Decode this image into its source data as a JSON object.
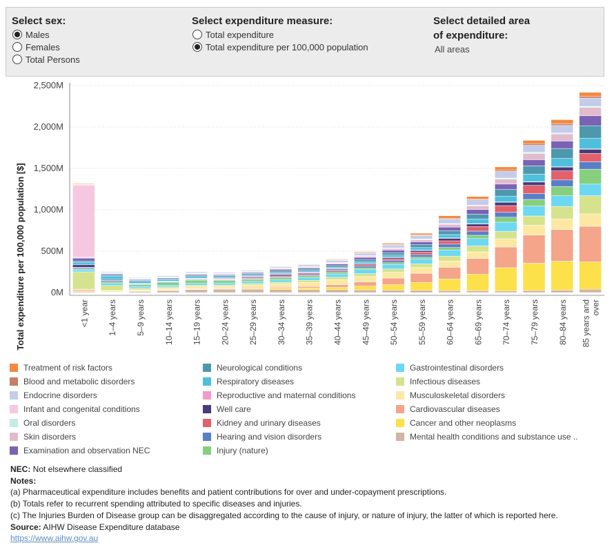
{
  "controls": {
    "sex": {
      "title": "Select sex:",
      "options": [
        "Males",
        "Females",
        "Total Persons"
      ],
      "selected": 0
    },
    "measure": {
      "title": "Select expenditure measure:",
      "options": [
        "Total expenditure",
        "Total expenditure per 100,000 population"
      ],
      "selected": 1
    },
    "area": {
      "title_line1": "Select detailed area",
      "title_line2": "of expenditure:",
      "value": "All areas"
    }
  },
  "chart_data": {
    "type": "bar",
    "stacked": true,
    "ylabel": "Total expenditure per 100,000 population [$]",
    "xlabel": "",
    "ylim": [
      0,
      2500
    ],
    "yticks": [
      0,
      500,
      1000,
      1500,
      2000,
      2500
    ],
    "ytick_labels": [
      "0M",
      "500M",
      "1,000M",
      "1,500M",
      "2,000M",
      "2,500M"
    ],
    "grid": true,
    "categories": [
      "<1 year",
      "1–4 years",
      "5–9 years",
      "10–14 years",
      "15–19 years",
      "20–24 years",
      "25–29 years",
      "30–34 years",
      "35–39 years",
      "40–44 years",
      "45–49 years",
      "50–54 years",
      "55–59 years",
      "60–64 years",
      "65–69 years",
      "70–74 years",
      "75–79 years",
      "80–84 years",
      "85 years and over"
    ],
    "category_lines": [
      [
        "<1 year"
      ],
      [
        "1–4 years"
      ],
      [
        "5–9 years"
      ],
      [
        "10–14 years"
      ],
      [
        "15–19 years"
      ],
      [
        "20–24 years"
      ],
      [
        "25–29 years"
      ],
      [
        "30–34 years"
      ],
      [
        "35–39 years"
      ],
      [
        "40–44 years"
      ],
      [
        "45–49 years"
      ],
      [
        "50–54 years"
      ],
      [
        "55–59 years"
      ],
      [
        "60–64 years"
      ],
      [
        "65–69 years"
      ],
      [
        "70–74 years"
      ],
      [
        "75–79 years"
      ],
      [
        "80–84 years"
      ],
      [
        "85 years and",
        "over"
      ]
    ],
    "series": [
      {
        "name": "Mental health conditions and substance use ..",
        "color": "#d3b3a2",
        "values": [
          10,
          5,
          15,
          25,
          35,
          40,
          40,
          38,
          35,
          35,
          33,
          30,
          28,
          25,
          22,
          20,
          25,
          30,
          40
        ]
      },
      {
        "name": "Cancer and other neoplasms",
        "color": "#fce14a",
        "values": [
          10,
          10,
          5,
          5,
          5,
          5,
          8,
          15,
          20,
          30,
          45,
          65,
          95,
          140,
          200,
          280,
          330,
          350,
          330
        ]
      },
      {
        "name": "Cardiovascular diseases",
        "color": "#f4a58a",
        "values": [
          15,
          5,
          3,
          4,
          5,
          6,
          8,
          12,
          18,
          30,
          50,
          80,
          110,
          140,
          190,
          250,
          340,
          380,
          430
        ]
      },
      {
        "name": "Musculoskeletal disorders",
        "color": "#fde8a3",
        "values": [
          5,
          5,
          10,
          20,
          30,
          25,
          35,
          40,
          50,
          60,
          65,
          70,
          70,
          75,
          80,
          100,
          120,
          130,
          150
        ]
      },
      {
        "name": "Infectious diseases",
        "color": "#d5e38e",
        "values": [
          210,
          60,
          20,
          15,
          15,
          15,
          18,
          20,
          25,
          30,
          35,
          40,
          45,
          60,
          70,
          90,
          110,
          150,
          220
        ]
      },
      {
        "name": "Gastrointestinal disorders",
        "color": "#6ed8f3",
        "values": [
          25,
          25,
          20,
          20,
          25,
          25,
          25,
          30,
          35,
          40,
          50,
          55,
          60,
          75,
          90,
          110,
          120,
          130,
          140
        ]
      },
      {
        "name": "Injury (nature)",
        "color": "#85cf7e",
        "values": [
          10,
          20,
          20,
          30,
          35,
          30,
          25,
          25,
          20,
          20,
          20,
          20,
          20,
          30,
          40,
          60,
          80,
          110,
          180
        ]
      },
      {
        "name": "Hearing and vision disorders",
        "color": "#5a7fc9",
        "values": [
          15,
          15,
          8,
          8,
          8,
          8,
          8,
          10,
          12,
          15,
          20,
          25,
          30,
          40,
          50,
          60,
          70,
          80,
          90
        ]
      },
      {
        "name": "Kidney and urinary diseases",
        "color": "#e2616b",
        "values": [
          5,
          5,
          5,
          5,
          5,
          5,
          8,
          10,
          12,
          15,
          18,
          22,
          30,
          40,
          55,
          80,
          100,
          110,
          100
        ]
      },
      {
        "name": "Well care",
        "color": "#4a3a79",
        "values": [
          30,
          10,
          5,
          5,
          5,
          5,
          10,
          15,
          10,
          10,
          12,
          15,
          20,
          30,
          30,
          40,
          40,
          45,
          50
        ]
      },
      {
        "name": "Reproductive and maternal conditions",
        "color": "#f29ac8",
        "values": [
          0,
          0,
          0,
          0,
          5,
          10,
          15,
          15,
          10,
          5,
          5,
          5,
          5,
          5,
          5,
          5,
          5,
          5,
          5
        ]
      },
      {
        "name": "Respiratory diseases",
        "color": "#4ec0dc",
        "values": [
          30,
          40,
          25,
          20,
          20,
          15,
          15,
          15,
          15,
          15,
          20,
          25,
          30,
          40,
          55,
          70,
          90,
          100,
          130
        ]
      },
      {
        "name": "Neurological conditions",
        "color": "#4e98ae",
        "values": [
          15,
          10,
          10,
          10,
          15,
          15,
          15,
          20,
          20,
          20,
          25,
          30,
          35,
          45,
          60,
          80,
          100,
          120,
          150
        ]
      },
      {
        "name": "Examination and observation NEC",
        "color": "#7a62b5",
        "values": [
          35,
          15,
          10,
          10,
          10,
          10,
          10,
          15,
          15,
          20,
          25,
          30,
          35,
          45,
          55,
          65,
          75,
          90,
          120
        ]
      },
      {
        "name": "Skin disorders",
        "color": "#e2bccc",
        "values": [
          10,
          5,
          5,
          5,
          10,
          10,
          10,
          10,
          10,
          10,
          15,
          20,
          25,
          35,
          45,
          60,
          75,
          85,
          100
        ]
      },
      {
        "name": "Oral disorders",
        "color": "#c2ede3",
        "values": [
          2,
          10,
          8,
          5,
          5,
          5,
          5,
          5,
          5,
          5,
          5,
          5,
          5,
          5,
          5,
          10,
          10,
          10,
          10
        ]
      },
      {
        "name": "Infant and congenital conditions",
        "color": "#f6c8e0",
        "values": [
          870,
          5,
          3,
          3,
          3,
          3,
          3,
          3,
          3,
          3,
          3,
          3,
          3,
          3,
          3,
          3,
          3,
          3,
          3
        ]
      },
      {
        "name": "Endocrine disorders",
        "color": "#c3cdea",
        "values": [
          5,
          10,
          10,
          15,
          15,
          12,
          12,
          15,
          20,
          25,
          30,
          35,
          45,
          55,
          65,
          80,
          85,
          90,
          100
        ]
      },
      {
        "name": "Blood and metabolic disorders",
        "color": "#c57f6a",
        "values": [
          5,
          3,
          2,
          2,
          3,
          3,
          3,
          3,
          3,
          3,
          5,
          5,
          5,
          10,
          10,
          15,
          20,
          20,
          20
        ]
      },
      {
        "name": "Treatment of risk factors",
        "color": "#f28a42",
        "values": [
          8,
          2,
          2,
          2,
          2,
          2,
          2,
          5,
          6,
          8,
          10,
          15,
          20,
          30,
          30,
          40,
          40,
          50,
          50
        ]
      }
    ]
  },
  "legend": {
    "columns": [
      [
        "Treatment of risk factors",
        "Blood and metabolic disorders",
        "Endocrine disorders",
        "Infant and congenital conditions",
        "Oral disorders",
        "Skin disorders",
        "Examination and observation NEC"
      ],
      [
        "Neurological conditions",
        "Respiratory diseases",
        "Reproductive and maternal conditions",
        "Well care",
        "Kidney and urinary diseases",
        "Hearing and vision disorders",
        "Injury (nature)"
      ],
      [
        "Gastrointestinal disorders",
        "Infectious diseases",
        "Musculoskeletal disorders",
        "Cardiovascular diseases",
        "Cancer and other neoplasms",
        "Mental health conditions and substance use .."
      ]
    ]
  },
  "notes": {
    "nec_label": "NEC:",
    "nec_text": " Not elsewhere classified",
    "notes_label": "Notes:",
    "note_a": "(a) Pharmaceutical expenditure includes benefits and patient contributions for over and under-copayment prescriptions.",
    "note_b": "(b) Totals refer to recurrent spending attributed to specific diseases and injuries.",
    "note_c": "(c) The Injuries Burden of Disease group can be disaggregated according to the cause of injury, or nature of injury, the latter of which is reported here.",
    "source_label": "Source:",
    "source_text": " AIHW Disease Expenditure database",
    "link": "https://www.aihw.gov.au"
  }
}
